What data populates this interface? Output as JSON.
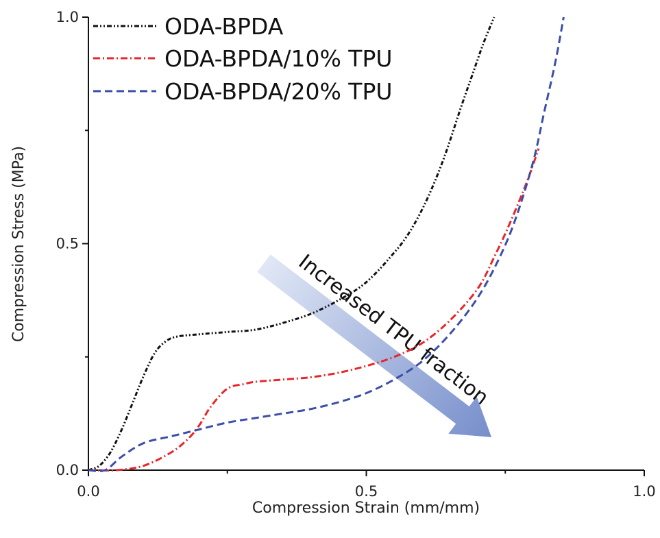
{
  "chart_data": {
    "type": "line",
    "xlabel": "Compression Strain (mm/mm)",
    "ylabel": "Compression Stress (MPa)",
    "xlim": [
      0,
      1
    ],
    "ylim": [
      0,
      1
    ],
    "xticks": [
      0,
      0.5,
      1
    ],
    "xtick_labels": [
      "0.0",
      "0.5",
      "1.0"
    ],
    "yticks": [
      0,
      0.5,
      1
    ],
    "ytick_labels": [
      "0.0",
      "0.5",
      "1.0"
    ],
    "grid": false,
    "legend_position": "top-left",
    "series": [
      {
        "name": "ODA-BPDA",
        "color": "#111111",
        "style": "dash-dot-dot",
        "x": [
          0.0,
          0.02,
          0.04,
          0.06,
          0.08,
          0.1,
          0.12,
          0.14,
          0.16,
          0.2,
          0.25,
          0.3,
          0.35,
          0.4,
          0.45,
          0.5,
          0.55,
          0.58,
          0.61,
          0.64,
          0.67,
          0.69,
          0.71,
          0.73
        ],
        "y": [
          0.0,
          0.01,
          0.04,
          0.09,
          0.15,
          0.21,
          0.26,
          0.285,
          0.295,
          0.3,
          0.305,
          0.31,
          0.325,
          0.345,
          0.375,
          0.415,
          0.48,
          0.53,
          0.6,
          0.69,
          0.8,
          0.87,
          0.94,
          1.0
        ]
      },
      {
        "name": "ODA-BPDA/10% TPU",
        "color": "#e8262a",
        "style": "dash-dot",
        "x": [
          0.0,
          0.05,
          0.1,
          0.15,
          0.18,
          0.2,
          0.22,
          0.25,
          0.28,
          0.3,
          0.35,
          0.4,
          0.45,
          0.5,
          0.55,
          0.6,
          0.65,
          0.7,
          0.73,
          0.76,
          0.79,
          0.81
        ],
        "y": [
          0.0,
          0.0,
          0.01,
          0.04,
          0.07,
          0.1,
          0.14,
          0.18,
          0.19,
          0.195,
          0.2,
          0.205,
          0.215,
          0.23,
          0.25,
          0.28,
          0.33,
          0.4,
          0.47,
          0.55,
          0.64,
          0.71
        ]
      },
      {
        "name": "ODA-BPDA/20% TPU",
        "color": "#3b4ea8",
        "style": "dashed",
        "x": [
          0.0,
          0.03,
          0.06,
          0.1,
          0.15,
          0.2,
          0.25,
          0.3,
          0.35,
          0.4,
          0.45,
          0.5,
          0.55,
          0.6,
          0.65,
          0.7,
          0.74,
          0.77,
          0.8,
          0.82,
          0.84,
          0.855
        ],
        "y": [
          0.0,
          0.0,
          0.03,
          0.06,
          0.075,
          0.09,
          0.105,
          0.115,
          0.125,
          0.135,
          0.15,
          0.17,
          0.2,
          0.24,
          0.3,
          0.38,
          0.47,
          0.56,
          0.68,
          0.79,
          0.9,
          1.0
        ]
      }
    ],
    "annotations": [
      {
        "text": "Increased TPU fraction",
        "type": "arrow",
        "color": "#7f96cf"
      }
    ]
  }
}
